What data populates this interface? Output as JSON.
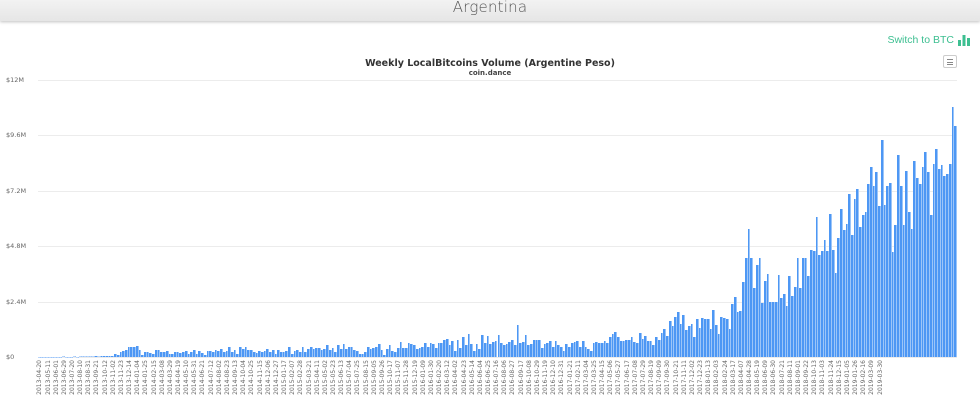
{
  "header": {
    "title": "Argentina"
  },
  "toggle": {
    "label": "Switch to BTC",
    "icon": "bar-chart-icon",
    "color": "#3dbf91"
  },
  "chart_menu": {
    "icon": "hamburger-menu-icon"
  },
  "chart_data": {
    "type": "bar",
    "title": "Weekly LocalBitcoins Volume (Argentine Peso)",
    "subtitle": "coin.dance",
    "xlabel": "",
    "ylabel": "",
    "ylim": [
      0,
      12
    ],
    "y_unit": "USD millions",
    "y_ticks": [
      "$0",
      "$2.4M",
      "$4.8M",
      "$7.2M",
      "$9.6M",
      "$12M"
    ],
    "y_tick_values": [
      0,
      2.4,
      4.8,
      7.2,
      9.6,
      12
    ],
    "grid": true,
    "legend": "none",
    "bar_color": "#4d97f4",
    "x_start": "2013-04-20",
    "x_end": "2019-03-30",
    "x_interval_days": 7,
    "x_tick_labels": [
      "2013-04-20",
      "2013-05-11",
      "2013-06-01",
      "2013-06-29",
      "2013-07-20",
      "2013-08-10",
      "2013-08-31",
      "2013-09-21",
      "2013-10-12",
      "2013-11-02",
      "2013-11-23",
      "2013-12-14",
      "2014-01-04",
      "2014-01-25",
      "2014-02-15",
      "2014-03-08",
      "2014-03-29",
      "2014-04-19",
      "2014-05-10",
      "2014-05-31",
      "2014-06-21",
      "2014-07-12",
      "2014-08-02",
      "2014-08-23",
      "2014-09-13",
      "2014-10-04",
      "2014-10-25",
      "2014-11-15",
      "2014-12-06",
      "2014-12-27",
      "2015-01-17",
      "2015-02-07",
      "2015-02-28",
      "2015-03-21",
      "2015-04-11",
      "2015-05-02",
      "2015-05-23",
      "2015-06-13",
      "2015-07-04",
      "2015-07-25",
      "2015-08-15",
      "2015-09-05",
      "2015-09-26",
      "2015-10-17",
      "2015-11-07",
      "2015-11-28",
      "2015-12-19",
      "2016-01-09",
      "2016-01-30",
      "2016-02-20",
      "2016-03-12",
      "2016-04-02",
      "2016-04-23",
      "2016-05-14",
      "2016-06-04",
      "2016-06-25",
      "2016-07-16",
      "2016-08-06",
      "2016-08-27",
      "2016-09-17",
      "2016-10-08",
      "2016-10-29",
      "2016-11-19",
      "2016-12-10",
      "2016-12-31",
      "2017-01-21",
      "2017-02-11",
      "2017-03-04",
      "2017-03-25",
      "2017-04-15",
      "2017-05-06",
      "2017-05-27",
      "2017-06-17",
      "2017-07-08",
      "2017-07-29",
      "2017-08-19",
      "2017-09-09",
      "2017-09-30",
      "2017-10-21",
      "2017-11-11",
      "2017-12-02",
      "2017-12-23",
      "2018-01-13",
      "2018-02-03",
      "2018-02-24",
      "2018-03-17",
      "2018-04-07",
      "2018-04-28",
      "2018-05-19",
      "2018-06-09",
      "2018-06-30",
      "2018-07-21",
      "2018-08-11",
      "2018-09-01",
      "2018-09-22",
      "2018-10-13",
      "2018-11-03",
      "2018-11-24",
      "2018-12-15",
      "2019-01-05",
      "2019-01-26",
      "2019-02-16",
      "2019-03-09",
      "2019-03-30"
    ],
    "values": [
      0.01,
      0.01,
      0.01,
      0.02,
      0.01,
      0.02,
      0.02,
      0.01,
      0.02,
      0.03,
      0.02,
      0.02,
      0.02,
      0.03,
      0.02,
      0.03,
      0.04,
      0.03,
      0.03,
      0.04,
      0.04,
      0.05,
      0.04,
      0.05,
      0.05,
      0.06,
      0.05,
      0.06,
      0.12,
      0.08,
      0.2,
      0.28,
      0.3,
      0.42,
      0.45,
      0.45,
      0.46,
      0.3,
      0.1,
      0.22,
      0.2,
      0.18,
      0.15,
      0.3,
      0.3,
      0.22,
      0.2,
      0.25,
      0.15,
      0.12,
      0.22,
      0.2,
      0.18,
      0.2,
      0.25,
      0.15,
      0.2,
      0.3,
      0.15,
      0.25,
      0.18,
      0.1,
      0.25,
      0.28,
      0.2,
      0.3,
      0.25,
      0.35,
      0.2,
      0.25,
      0.42,
      0.2,
      0.3,
      0.15,
      0.45,
      0.35,
      0.45,
      0.3,
      0.3,
      0.2,
      0.18,
      0.25,
      0.2,
      0.28,
      0.35,
      0.2,
      0.3,
      0.15,
      0.3,
      0.22,
      0.2,
      0.25,
      0.42,
      0.15,
      0.25,
      0.3,
      0.2,
      0.42,
      0.2,
      0.35,
      0.45,
      0.35,
      0.38,
      0.4,
      0.3,
      0.35,
      0.5,
      0.3,
      0.4,
      0.2,
      0.5,
      0.35,
      0.55,
      0.35,
      0.45,
      0.42,
      0.3,
      0.25,
      0.12,
      0.12,
      0.22,
      0.45,
      0.35,
      0.4,
      0.45,
      0.55,
      0.3,
      0.1,
      0.35,
      0.5,
      0.25,
      0.2,
      0.4,
      0.65,
      0.4,
      0.4,
      0.6,
      0.55,
      0.5,
      0.35,
      0.4,
      0.45,
      0.6,
      0.45,
      0.6,
      0.55,
      0.4,
      0.6,
      0.6,
      0.75,
      0.8,
      0.5,
      0.7,
      0.25,
      0.75,
      0.4,
      0.85,
      0.5,
      1.0,
      0.55,
      0.25,
      0.55,
      0.35,
      0.95,
      0.6,
      0.9,
      0.55,
      0.65,
      0.7,
      0.95,
      0.6,
      0.5,
      0.55,
      0.65,
      0.75,
      0.5,
      1.4,
      0.6,
      0.65,
      0.95,
      0.5,
      0.55,
      0.75,
      0.75,
      0.75,
      0.4,
      0.55,
      0.6,
      0.7,
      0.45,
      0.7,
      0.5,
      0.45,
      0.25,
      0.55,
      0.45,
      0.6,
      0.65,
      0.7,
      0.45,
      0.7,
      0.45,
      0.35,
      0.25,
      0.6,
      0.65,
      0.6,
      0.6,
      0.7,
      0.6,
      0.85,
      1.0,
      1.1,
      0.85,
      0.7,
      0.7,
      0.75,
      0.75,
      0.85,
      0.65,
      0.6,
      1.05,
      0.8,
      0.9,
      0.7,
      0.7,
      0.5,
      0.85,
      0.75,
      1.05,
      1.2,
      0.9,
      1.55,
      1.35,
      1.75,
      1.95,
      1.45,
      1.8,
      1.15,
      1.35,
      1.45,
      0.85,
      1.65,
      1.25,
      1.7,
      1.65,
      1.65,
      1.2,
      2.05,
      1.4,
      1.0,
      1.75,
      1.7,
      1.65,
      1.2,
      2.3,
      2.6,
      1.95,
      2.0,
      3.25,
      4.3,
      5.55,
      4.3,
      3.0,
      4.0,
      4.3,
      2.35,
      3.3,
      3.6,
      2.4,
      2.4,
      2.4,
      3.55,
      2.55,
      2.75,
      2.2,
      3.5,
      2.65,
      3.05,
      4.3,
      3.0,
      4.3,
      4.3,
      3.5,
      4.65,
      4.6,
      6.05,
      4.4,
      4.6,
      5.05,
      4.6,
      6.2,
      4.65,
      3.65,
      5.15,
      6.4,
      5.5,
      5.75,
      7.05,
      5.3,
      6.85,
      7.3,
      5.65,
      6.15,
      6.3,
      7.5,
      8.25,
      7.4,
      8.0,
      6.55,
      9.4,
      6.6,
      7.4,
      7.55,
      4.55,
      5.7,
      8.75,
      7.4,
      5.7,
      8.05,
      6.3,
      5.55,
      8.5,
      7.75,
      7.5,
      8.25,
      8.9,
      8.0,
      6.15,
      8.35,
      9.0,
      8.15,
      8.3,
      7.85,
      7.95,
      8.35,
      10.85,
      10.0
    ]
  }
}
